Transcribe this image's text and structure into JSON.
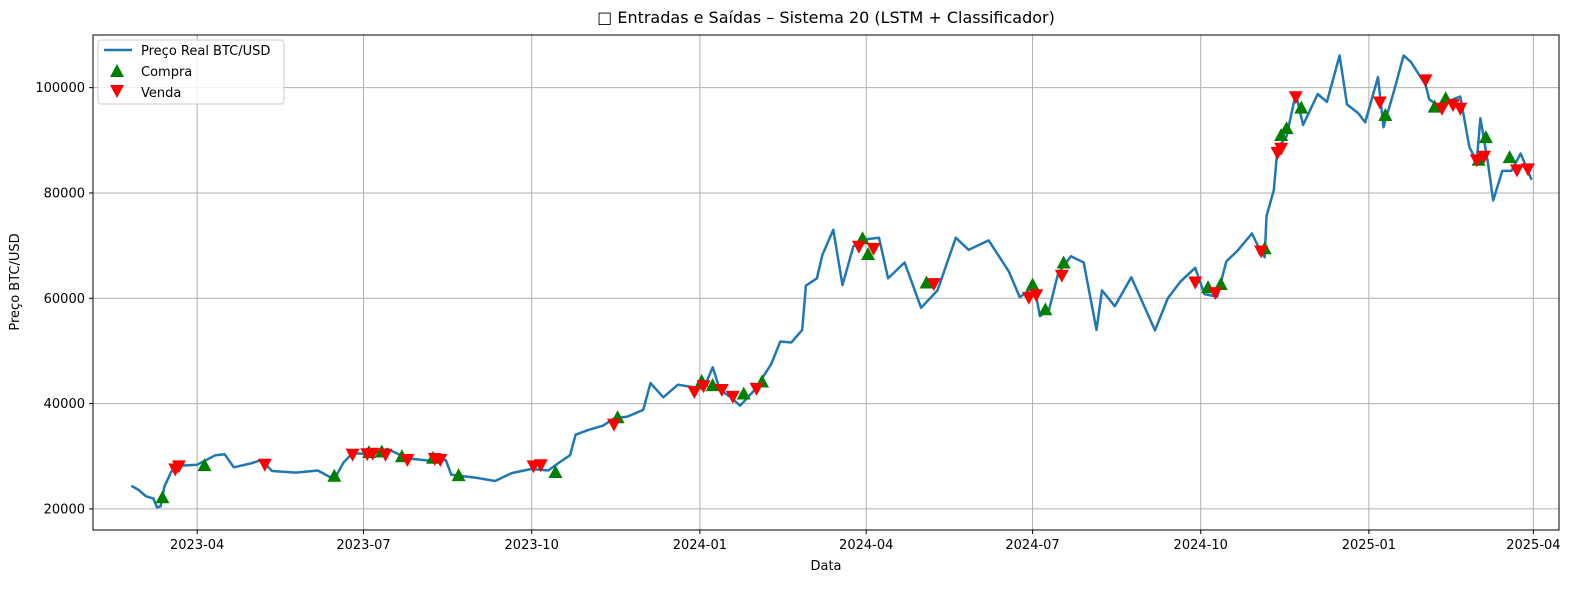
{
  "chart_data": {
    "type": "line",
    "title": "□ Entradas e Saídas – Sistema 20 (LSTM + Classificador)",
    "xlabel": "Data",
    "ylabel": "Preço BTC/USD",
    "grid": true,
    "legend_placement": "top-left",
    "xlim": [
      "2023-02-03",
      "2025-04-15"
    ],
    "ylim": [
      16000,
      110000
    ],
    "x_ticks": [
      "2023-04",
      "2023-07",
      "2023-10",
      "2024-01",
      "2024-04",
      "2024-07",
      "2024-10",
      "2025-01",
      "2025-04"
    ],
    "y_ticks": [
      20000,
      40000,
      60000,
      80000,
      100000
    ],
    "colors": {
      "price": "#1f77b4",
      "buy": "#008000",
      "sell": "#ff0000",
      "grid": "#b0b0b0"
    },
    "series": [
      {
        "name": "Preço Real BTC/USD",
        "kind": "line",
        "points": [
          [
            "2023-02-24",
            24400
          ],
          [
            "2023-02-28",
            23600
          ],
          [
            "2023-03-04",
            22400
          ],
          [
            "2023-03-08",
            22000
          ],
          [
            "2023-03-10",
            20300
          ],
          [
            "2023-03-12",
            20500
          ],
          [
            "2023-03-14",
            24200
          ],
          [
            "2023-03-18",
            27200
          ],
          [
            "2023-03-22",
            28200
          ],
          [
            "2023-04-01",
            28400
          ],
          [
            "2023-04-11",
            30200
          ],
          [
            "2023-04-16",
            30400
          ],
          [
            "2023-04-21",
            27900
          ],
          [
            "2023-05-01",
            28700
          ],
          [
            "2023-05-06",
            29300
          ],
          [
            "2023-05-12",
            27200
          ],
          [
            "2023-05-25",
            26900
          ],
          [
            "2023-06-06",
            27300
          ],
          [
            "2023-06-15",
            25600
          ],
          [
            "2023-06-20",
            28800
          ],
          [
            "2023-06-25",
            30600
          ],
          [
            "2023-07-05",
            30400
          ],
          [
            "2023-07-14",
            31400
          ],
          [
            "2023-07-25",
            29600
          ],
          [
            "2023-08-05",
            29200
          ],
          [
            "2023-08-15",
            29300
          ],
          [
            "2023-08-18",
            26500
          ],
          [
            "2023-09-01",
            25900
          ],
          [
            "2023-09-11",
            25300
          ],
          [
            "2023-09-20",
            26800
          ],
          [
            "2023-10-01",
            27600
          ],
          [
            "2023-10-10",
            27300
          ],
          [
            "2023-10-16",
            28800
          ],
          [
            "2023-10-22",
            30200
          ],
          [
            "2023-10-25",
            34100
          ],
          [
            "2023-11-01",
            35000
          ],
          [
            "2023-11-09",
            35800
          ],
          [
            "2023-11-15",
            37200
          ],
          [
            "2023-11-22",
            37500
          ],
          [
            "2023-12-01",
            38800
          ],
          [
            "2023-12-05",
            43900
          ],
          [
            "2023-12-12",
            41200
          ],
          [
            "2023-12-20",
            43600
          ],
          [
            "2024-01-03",
            42800
          ],
          [
            "2024-01-08",
            46900
          ],
          [
            "2024-01-12",
            42600
          ],
          [
            "2024-01-18",
            41200
          ],
          [
            "2024-01-23",
            39600
          ],
          [
            "2024-01-31",
            42600
          ],
          [
            "2024-02-09",
            47500
          ],
          [
            "2024-02-14",
            51800
          ],
          [
            "2024-02-20",
            51600
          ],
          [
            "2024-02-26",
            54000
          ],
          [
            "2024-02-28",
            62400
          ],
          [
            "2024-03-05",
            63800
          ],
          [
            "2024-03-08",
            68200
          ],
          [
            "2024-03-14",
            73000
          ],
          [
            "2024-03-19",
            62500
          ],
          [
            "2024-03-25",
            69900
          ],
          [
            "2024-04-01",
            71200
          ],
          [
            "2024-04-08",
            71500
          ],
          [
            "2024-04-13",
            63800
          ],
          [
            "2024-04-22",
            66800
          ],
          [
            "2024-05-01",
            58200
          ],
          [
            "2024-05-10",
            61500
          ],
          [
            "2024-05-20",
            71500
          ],
          [
            "2024-05-27",
            69200
          ],
          [
            "2024-06-07",
            71000
          ],
          [
            "2024-06-18",
            65100
          ],
          [
            "2024-06-24",
            60200
          ],
          [
            "2024-07-02",
            62300
          ],
          [
            "2024-07-05",
            56600
          ],
          [
            "2024-07-10",
            57800
          ],
          [
            "2024-07-15",
            64700
          ],
          [
            "2024-07-22",
            68000
          ],
          [
            "2024-07-29",
            66800
          ],
          [
            "2024-08-05",
            54000
          ],
          [
            "2024-08-08",
            61500
          ],
          [
            "2024-08-15",
            58500
          ],
          [
            "2024-08-24",
            64000
          ],
          [
            "2024-09-06",
            53900
          ],
          [
            "2024-09-13",
            60000
          ],
          [
            "2024-09-20",
            63200
          ],
          [
            "2024-09-28",
            65800
          ],
          [
            "2024-10-03",
            60800
          ],
          [
            "2024-10-10",
            60300
          ],
          [
            "2024-10-15",
            67000
          ],
          [
            "2024-10-21",
            69000
          ],
          [
            "2024-10-29",
            72300
          ],
          [
            "2024-11-03",
            68800
          ],
          [
            "2024-11-05",
            67800
          ],
          [
            "2024-11-06",
            75600
          ],
          [
            "2024-11-10",
            80500
          ],
          [
            "2024-11-12",
            88500
          ],
          [
            "2024-11-17",
            90800
          ],
          [
            "2024-11-22",
            98900
          ],
          [
            "2024-11-26",
            92900
          ],
          [
            "2024-12-04",
            98800
          ],
          [
            "2024-12-09",
            97300
          ],
          [
            "2024-12-16",
            106100
          ],
          [
            "2024-12-20",
            96800
          ],
          [
            "2024-12-26",
            95200
          ],
          [
            "2024-12-30",
            93400
          ],
          [
            "2025-01-06",
            102000
          ],
          [
            "2025-01-09",
            92500
          ],
          [
            "2025-01-15",
            99700
          ],
          [
            "2025-01-20",
            106100
          ],
          [
            "2025-01-24",
            104900
          ],
          [
            "2025-02-01",
            100500
          ],
          [
            "2025-02-03",
            97800
          ],
          [
            "2025-02-09",
            96200
          ],
          [
            "2025-02-14",
            97500
          ],
          [
            "2025-02-20",
            98300
          ],
          [
            "2025-02-25",
            88700
          ],
          [
            "2025-03-01",
            86000
          ],
          [
            "2025-03-03",
            94200
          ],
          [
            "2025-03-07",
            86000
          ],
          [
            "2025-03-10",
            78600
          ],
          [
            "2025-03-15",
            84200
          ],
          [
            "2025-03-20",
            84200
          ],
          [
            "2025-03-25",
            87500
          ],
          [
            "2025-03-31",
            82500
          ]
        ]
      },
      {
        "name": "Compra",
        "kind": "marker-up",
        "points": [
          [
            "2023-03-13",
            22200
          ],
          [
            "2023-04-05",
            28300
          ],
          [
            "2023-06-15",
            26300
          ],
          [
            "2023-07-04",
            30800
          ],
          [
            "2023-07-11",
            30900
          ],
          [
            "2023-07-22",
            30000
          ],
          [
            "2023-08-08",
            29700
          ],
          [
            "2023-08-22",
            26400
          ],
          [
            "2023-10-14",
            27000
          ],
          [
            "2023-11-17",
            37400
          ],
          [
            "2024-01-02",
            44300
          ],
          [
            "2024-01-08",
            43500
          ],
          [
            "2024-01-25",
            41900
          ],
          [
            "2024-02-04",
            44200
          ],
          [
            "2024-03-30",
            71400
          ],
          [
            "2024-04-02",
            68400
          ],
          [
            "2024-05-04",
            63000
          ],
          [
            "2024-07-01",
            62600
          ],
          [
            "2024-07-08",
            57900
          ],
          [
            "2024-07-18",
            66800
          ],
          [
            "2024-10-05",
            62100
          ],
          [
            "2024-10-12",
            62700
          ],
          [
            "2024-11-05",
            69500
          ],
          [
            "2024-11-14",
            91000
          ],
          [
            "2024-11-17",
            92300
          ],
          [
            "2024-11-25",
            96200
          ],
          [
            "2025-01-10",
            94800
          ],
          [
            "2025-02-06",
            96400
          ],
          [
            "2025-02-12",
            98000
          ],
          [
            "2025-03-02",
            86300
          ],
          [
            "2025-03-06",
            90600
          ],
          [
            "2025-03-19",
            86800
          ]
        ]
      },
      {
        "name": "Venda",
        "kind": "marker-down",
        "points": [
          [
            "2023-03-20",
            27500
          ],
          [
            "2023-03-22",
            28100
          ],
          [
            "2023-05-08",
            28400
          ],
          [
            "2023-06-25",
            30300
          ],
          [
            "2023-07-03",
            30400
          ],
          [
            "2023-07-06",
            30500
          ],
          [
            "2023-07-13",
            30300
          ],
          [
            "2023-07-25",
            29300
          ],
          [
            "2023-08-09",
            29500
          ],
          [
            "2023-08-12",
            29300
          ],
          [
            "2023-10-02",
            28100
          ],
          [
            "2023-10-06",
            28300
          ],
          [
            "2023-11-15",
            36000
          ],
          [
            "2023-12-29",
            42200
          ],
          [
            "2024-01-03",
            43300
          ],
          [
            "2024-01-13",
            42600
          ],
          [
            "2024-01-19",
            41300
          ],
          [
            "2024-02-01",
            42800
          ],
          [
            "2024-03-28",
            69800
          ],
          [
            "2024-04-05",
            69400
          ],
          [
            "2024-05-08",
            62700
          ],
          [
            "2024-06-29",
            60100
          ],
          [
            "2024-07-03",
            60600
          ],
          [
            "2024-07-17",
            64300
          ],
          [
            "2024-09-28",
            63000
          ],
          [
            "2024-10-09",
            61000
          ],
          [
            "2024-11-03",
            68900
          ],
          [
            "2024-11-12",
            87600
          ],
          [
            "2024-11-14",
            88400
          ],
          [
            "2024-11-22",
            98200
          ],
          [
            "2025-01-07",
            97200
          ],
          [
            "2025-02-01",
            101400
          ],
          [
            "2025-02-10",
            96000
          ],
          [
            "2025-02-16",
            96700
          ],
          [
            "2025-02-20",
            96000
          ],
          [
            "2025-03-01",
            86200
          ],
          [
            "2025-03-05",
            86900
          ],
          [
            "2025-03-23",
            84300
          ],
          [
            "2025-03-29",
            84500
          ]
        ]
      }
    ]
  }
}
